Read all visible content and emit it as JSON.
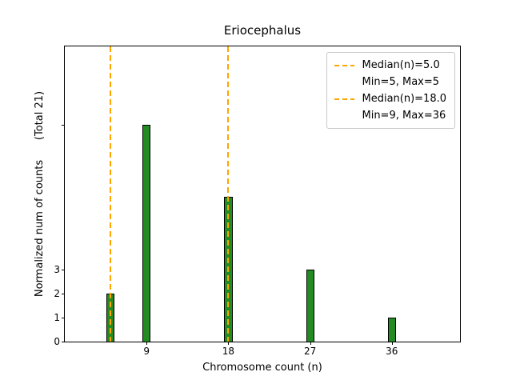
{
  "chart_data": {
    "type": "bar",
    "title": "Eriocephalus",
    "xlabel": "Chromosome count (n)",
    "ylabel": "Normalized num of counts      (Total 21)",
    "xlim": [
      0,
      43.5
    ],
    "ylim": [
      0,
      12.25
    ],
    "bar_width": 0.9,
    "bar_color": "#228B22",
    "bar_edge_color": "#000000",
    "bars": [
      {
        "x": 5,
        "height": 2
      },
      {
        "x": 9,
        "height": 9
      },
      {
        "x": 18,
        "height": 6
      },
      {
        "x": 27,
        "height": 3
      },
      {
        "x": 36,
        "height": 1
      }
    ],
    "median_line_color": "#FFA500",
    "median_lines": [
      {
        "x": 5
      },
      {
        "x": 18
      }
    ],
    "xticks": [
      {
        "value": 9,
        "label": "9"
      },
      {
        "value": 18,
        "label": "18"
      },
      {
        "value": 27,
        "label": "27"
      },
      {
        "value": 36,
        "label": "36"
      }
    ],
    "yticks": [
      {
        "value": 0,
        "label": "0"
      },
      {
        "value": 1,
        "label": "1"
      },
      {
        "value": 2,
        "label": "2"
      },
      {
        "value": 3,
        "label": "3"
      },
      {
        "value": 9,
        "label": ""
      }
    ],
    "legend": {
      "items": [
        {
          "handle": true,
          "label": "Median(n)=5.0"
        },
        {
          "handle": false,
          "label": "Min=5, Max=5"
        },
        {
          "handle": true,
          "label": "Median(n)=18.0"
        },
        {
          "handle": false,
          "label": "Min=9, Max=36"
        }
      ]
    }
  }
}
